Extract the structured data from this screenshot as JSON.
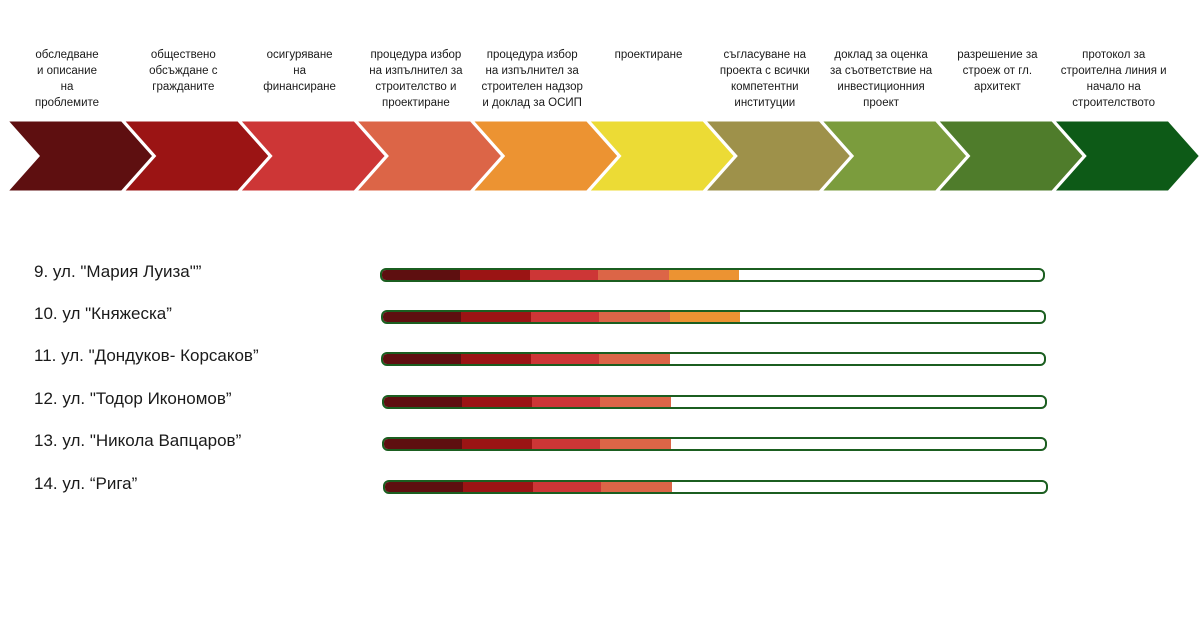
{
  "stages": [
    {
      "label": "обследване\nи описание\nна\nпроблемите",
      "color": "#5e0f10",
      "icon": "chevron-arrow"
    },
    {
      "label": "обществено\nобсъждане с\nгражданите",
      "color": "#9b1414",
      "icon": "chevron-arrow"
    },
    {
      "label": "осигуряване\nна\nфинансиране",
      "color": "#cd3636",
      "icon": "chevron-arrow"
    },
    {
      "label": "процедура избор\nна изпълнител за\nстроителство и\nпроектиране",
      "color": "#dc6547",
      "icon": "chevron-arrow"
    },
    {
      "label": "процедура избор\nна изпълнител за\nстроителен надзор\nи доклад за ОСИП",
      "color": "#ec9332",
      "icon": "chevron-arrow"
    },
    {
      "label": "проектиране",
      "color": "#ecdb35",
      "icon": "chevron-arrow"
    },
    {
      "label": "съгласуване на\nпроекта с всички\nкомпетентни\nинституции",
      "color": "#9e914a",
      "icon": "chevron-arrow"
    },
    {
      "label": "доклад за оценка\nза съответствие на\nинвестиционния\nпроект",
      "color": "#7b9c3d",
      "icon": "chevron-arrow"
    },
    {
      "label": "разрешение за\nстроеж от гл.\nархитект",
      "color": "#4f7c2b",
      "icon": "chevron-arrow"
    },
    {
      "label": "протокол за\nстроителна линия и\nначало на\nстроителството",
      "color": "#0d5a17",
      "icon": "chevron-arrow"
    }
  ],
  "progress_rows": [
    {
      "label": "9.   ул. \"Мария Луиза\"”",
      "completed_stages": 5
    },
    {
      "label": "10. ул \"Княжеска”",
      "completed_stages": 5
    },
    {
      "label": "11. ул. \"Дондуков- Корсаков”",
      "completed_stages": 4
    },
    {
      "label": "12. ул. \"Тодор Икономов”",
      "completed_stages": 4
    },
    {
      "label": "13. ул. \"Никола Вапцаров”",
      "completed_stages": 4
    },
    {
      "label": "14. ул. “Рига”",
      "completed_stages": 4
    }
  ],
  "track_color": "#1b5e20"
}
